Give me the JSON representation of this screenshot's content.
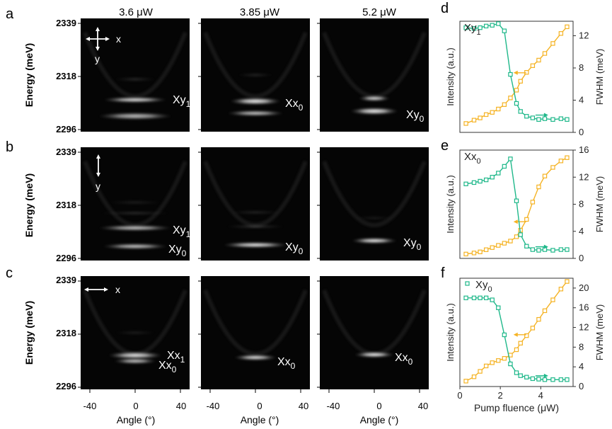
{
  "figure": {
    "panel_letters": [
      "a",
      "b",
      "c",
      "d",
      "e",
      "f"
    ],
    "column_titles": [
      "3.6 μW",
      "3.85 μW",
      "5.2 μW"
    ],
    "energy_axis_label": "Energy (meV)",
    "energy_ticks": [
      "2339",
      "2318",
      "2296"
    ],
    "angle_axis_label": "Angle (°)",
    "angle_ticks": [
      "-40",
      "0",
      "40"
    ]
  },
  "polarization_markers": {
    "row_a": {
      "symbol": "cross-arrow",
      "labels": [
        "x",
        "y"
      ]
    },
    "row_b": {
      "symbol": "vertical-arrow",
      "labels": [
        "y"
      ]
    },
    "row_c": {
      "symbol": "horizontal-arrow",
      "labels": [
        "x"
      ]
    }
  },
  "image_grid": {
    "rows": [
      {
        "panel": "a",
        "columns": [
          {
            "energy_ticks": true,
            "mode_labels": [
              {
                "text": "Xy",
                "sub": "1"
              }
            ]
          },
          {
            "mode_labels": [
              {
                "text": "Xx",
                "sub": "0"
              }
            ]
          },
          {
            "mode_labels": [
              {
                "text": "Xy",
                "sub": "0"
              }
            ]
          }
        ]
      },
      {
        "panel": "b",
        "columns": [
          {
            "mode_labels": [
              {
                "text": "Xy",
                "sub": "1"
              },
              {
                "text": "Xy",
                "sub": "0"
              }
            ]
          },
          {
            "mode_labels": [
              {
                "text": "Xy",
                "sub": "0"
              }
            ]
          },
          {
            "mode_labels": [
              {
                "text": "Xy",
                "sub": "0"
              }
            ]
          }
        ]
      },
      {
        "panel": "c",
        "columns": [
          {
            "mode_labels": [
              {
                "text": "Xx",
                "sub": "1"
              },
              {
                "text": "Xx",
                "sub": "0"
              }
            ]
          },
          {
            "mode_labels": [
              {
                "text": "Xx",
                "sub": "0"
              }
            ]
          },
          {
            "mode_labels": [
              {
                "text": "Xx",
                "sub": "0"
              }
            ]
          }
        ]
      }
    ]
  },
  "chart_data": [
    {
      "panel": "d",
      "type": "scatter",
      "title": "Xy1",
      "xlim": [
        0,
        5.6
      ],
      "ylabel_left": "Intensity (a.u.)",
      "ylabel_right": "FWHM (meV)",
      "y2_ticks": [
        0,
        4,
        8,
        12
      ],
      "y2lim": [
        0,
        13.8
      ],
      "series": [
        {
          "axis": "left",
          "color": "#f5b324",
          "x": [
            0.3,
            0.7,
            1.0,
            1.3,
            1.6,
            1.9,
            2.2,
            2.5,
            2.8,
            3.0,
            3.3,
            3.6,
            3.9,
            4.2,
            4.6,
            5.0,
            5.3
          ],
          "y": [
            0.08,
            0.11,
            0.13,
            0.16,
            0.18,
            0.21,
            0.25,
            0.31,
            0.38,
            0.46,
            0.54,
            0.6,
            0.65,
            0.71,
            0.8,
            0.89,
            0.95
          ]
        },
        {
          "axis": "right",
          "color": "#1fb88a",
          "x": [
            0.3,
            0.7,
            1.0,
            1.3,
            1.6,
            1.9,
            2.2,
            2.5,
            2.8,
            3.0,
            3.3,
            3.6,
            3.9,
            4.2,
            4.6,
            5.0,
            5.3
          ],
          "y": [
            13.0,
            12.9,
            13.0,
            13.2,
            13.3,
            13.5,
            12.6,
            7.2,
            3.6,
            2.6,
            2.0,
            1.8,
            1.6,
            1.7,
            1.6,
            1.7,
            1.6
          ]
        }
      ]
    },
    {
      "panel": "e",
      "type": "scatter",
      "title": "Xx0",
      "xlim": [
        0,
        5.6
      ],
      "ylabel_left": "Intensity (a.u.)",
      "ylabel_right": "FWHM (meV)",
      "y2_ticks": [
        0,
        4,
        8,
        12,
        16
      ],
      "y2lim": [
        0,
        16
      ],
      "series": [
        {
          "axis": "left",
          "color": "#f5b324",
          "x": [
            0.3,
            0.7,
            1.0,
            1.3,
            1.6,
            1.9,
            2.2,
            2.5,
            2.8,
            3.0,
            3.3,
            3.6,
            3.9,
            4.2,
            4.6,
            5.0,
            5.3
          ],
          "y": [
            0.04,
            0.05,
            0.06,
            0.08,
            0.1,
            0.12,
            0.14,
            0.16,
            0.2,
            0.26,
            0.36,
            0.52,
            0.66,
            0.76,
            0.84,
            0.9,
            0.93
          ]
        },
        {
          "axis": "right",
          "color": "#1fb88a",
          "x": [
            0.3,
            0.7,
            1.0,
            1.3,
            1.6,
            1.9,
            2.2,
            2.5,
            2.8,
            3.0,
            3.3,
            3.6,
            3.9,
            4.2,
            4.6,
            5.0,
            5.3
          ],
          "y": [
            11.0,
            11.2,
            11.4,
            11.6,
            12.0,
            12.6,
            13.6,
            14.7,
            8.5,
            3.5,
            1.8,
            1.3,
            1.2,
            1.3,
            1.2,
            1.3,
            1.3
          ]
        }
      ]
    },
    {
      "panel": "f",
      "type": "scatter",
      "title": "Xy0",
      "xlabel": "Pump fluence (μW)",
      "x_ticks": [
        0,
        2,
        4
      ],
      "xlim": [
        0,
        5.6
      ],
      "ylabel_left": "Intensity (a.u.)",
      "ylabel_right": "FWHM (meV)",
      "y2_ticks": [
        0,
        4,
        8,
        12,
        16,
        20
      ],
      "y2lim": [
        0,
        22
      ],
      "series": [
        {
          "axis": "left",
          "color": "#f5b324",
          "x": [
            0.3,
            0.7,
            1.0,
            1.3,
            1.6,
            1.9,
            2.2,
            2.5,
            2.8,
            3.0,
            3.3,
            3.6,
            3.9,
            4.2,
            4.6,
            5.0,
            5.3
          ],
          "y": [
            0.05,
            0.09,
            0.14,
            0.19,
            0.22,
            0.24,
            0.26,
            0.29,
            0.34,
            0.4,
            0.47,
            0.54,
            0.62,
            0.7,
            0.8,
            0.9,
            0.97
          ]
        },
        {
          "axis": "right",
          "color": "#1fb88a",
          "x": [
            0.3,
            0.7,
            1.0,
            1.3,
            1.6,
            1.9,
            2.2,
            2.5,
            2.8,
            3.0,
            3.3,
            3.6,
            3.9,
            4.2,
            4.6,
            5.0,
            5.3
          ],
          "y": [
            18.0,
            18.0,
            18.0,
            18.0,
            17.6,
            16.0,
            10.5,
            4.6,
            2.8,
            2.2,
            1.9,
            1.6,
            1.5,
            1.4,
            1.4,
            1.4,
            1.4
          ]
        }
      ]
    }
  ]
}
